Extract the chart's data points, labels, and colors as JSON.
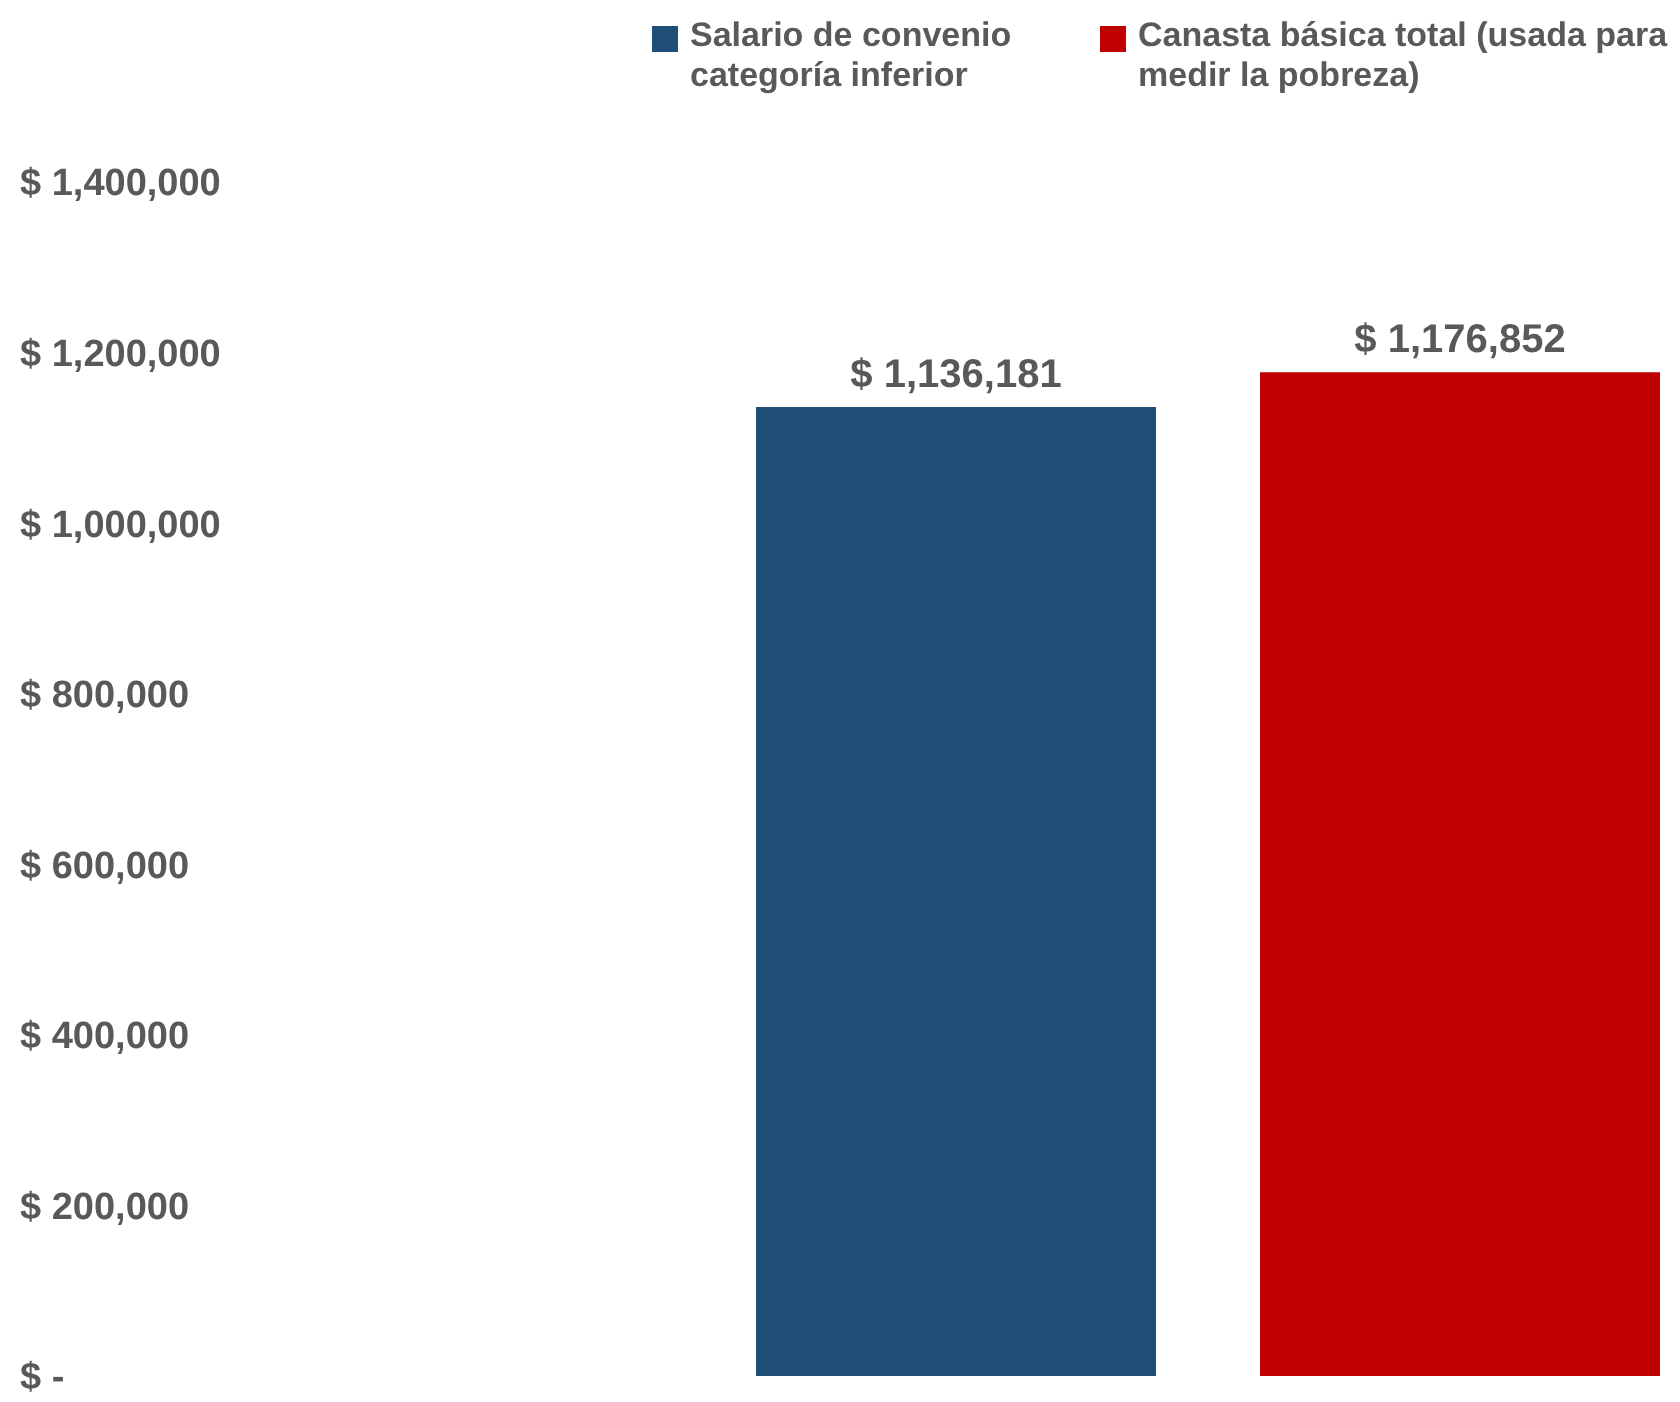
{
  "chart_data": {
    "type": "bar",
    "categories": [
      null
    ],
    "series": [
      {
        "name": "Salario de convenio categoría inferior",
        "color": "#1f4e79",
        "values": [
          1136181
        ],
        "value_labels": [
          "$ 1,136,181"
        ]
      },
      {
        "name": "Canasta básica total (usada para medir la pobreza)",
        "color": "#c00000",
        "values": [
          1176852
        ],
        "value_labels": [
          "$ 1,176,852"
        ]
      }
    ],
    "ylim": [
      0,
      1400000
    ],
    "yticks": [
      {
        "value": 0,
        "label": "$ -"
      },
      {
        "value": 200000,
        "label": "$ 200,000"
      },
      {
        "value": 400000,
        "label": "$ 400,000"
      },
      {
        "value": 600000,
        "label": "$ 600,000"
      },
      {
        "value": 800000,
        "label": "$ 800,000"
      },
      {
        "value": 1000000,
        "label": "$ 1,000,000"
      },
      {
        "value": 1200000,
        "label": "$ 1,200,000"
      },
      {
        "value": 1400000,
        "label": "$ 1,400,000"
      }
    ],
    "grid": false,
    "legend": "top right"
  }
}
